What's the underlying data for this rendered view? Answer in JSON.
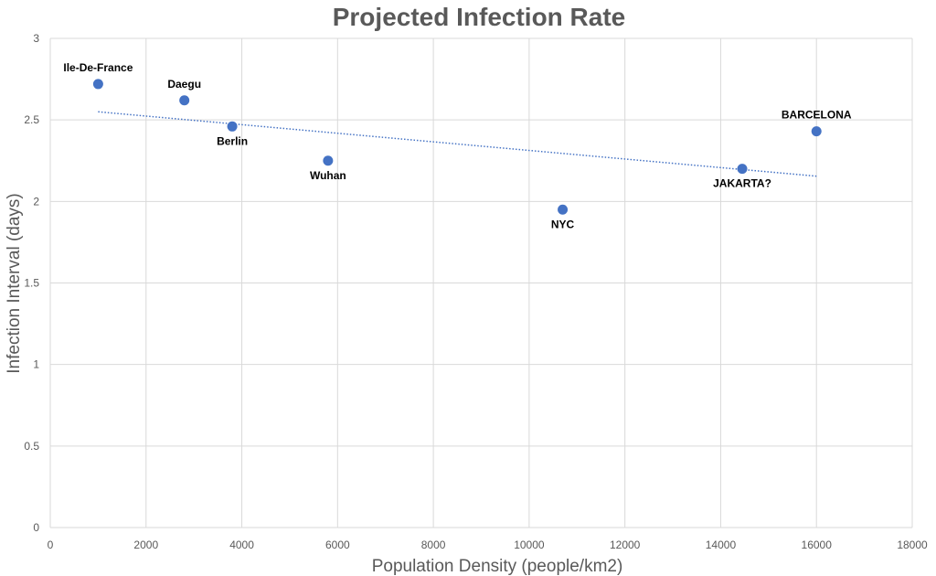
{
  "chart_data": {
    "type": "scatter",
    "title": "Projected Infection Rate",
    "xlabel": "Population Density (people/km2)",
    "ylabel": "Infection Interval (days)",
    "xlim": [
      0,
      18000
    ],
    "ylim": [
      0,
      3
    ],
    "x_ticks": [
      0,
      2000,
      4000,
      6000,
      8000,
      10000,
      12000,
      14000,
      16000,
      18000
    ],
    "y_ticks": [
      0,
      0.5,
      1,
      1.5,
      2,
      2.5,
      3
    ],
    "x_tick_labels": [
      "0",
      "2000",
      "4000",
      "6000",
      "8000",
      "10000",
      "12000",
      "14000",
      "16000",
      "18000"
    ],
    "y_tick_labels": [
      "0",
      "0.5",
      "1",
      "1.5",
      "2",
      "2.5",
      "3"
    ],
    "grid": true,
    "points": [
      {
        "label": "Ile-De-France",
        "x": 1000,
        "y": 2.72,
        "label_pos": "above"
      },
      {
        "label": "Daegu",
        "x": 2800,
        "y": 2.62,
        "label_pos": "above"
      },
      {
        "label": "Berlin",
        "x": 3800,
        "y": 2.46,
        "label_pos": "below"
      },
      {
        "label": "Wuhan",
        "x": 5800,
        "y": 2.25,
        "label_pos": "below"
      },
      {
        "label": "NYC",
        "x": 10700,
        "y": 1.95,
        "label_pos": "below"
      },
      {
        "label": "JAKARTA?",
        "x": 14450,
        "y": 2.2,
        "label_pos": "below"
      },
      {
        "label": "BARCELONA",
        "x": 16000,
        "y": 2.43,
        "label_pos": "above"
      }
    ],
    "trendline": {
      "type": "linear",
      "x": [
        1000,
        16000
      ],
      "y": [
        2.55,
        2.155
      ],
      "style": "dotted"
    },
    "colors": {
      "marker": "#4472c4",
      "trendline": "#4472c4",
      "grid": "#d9d9d9",
      "text": "#595959"
    }
  }
}
